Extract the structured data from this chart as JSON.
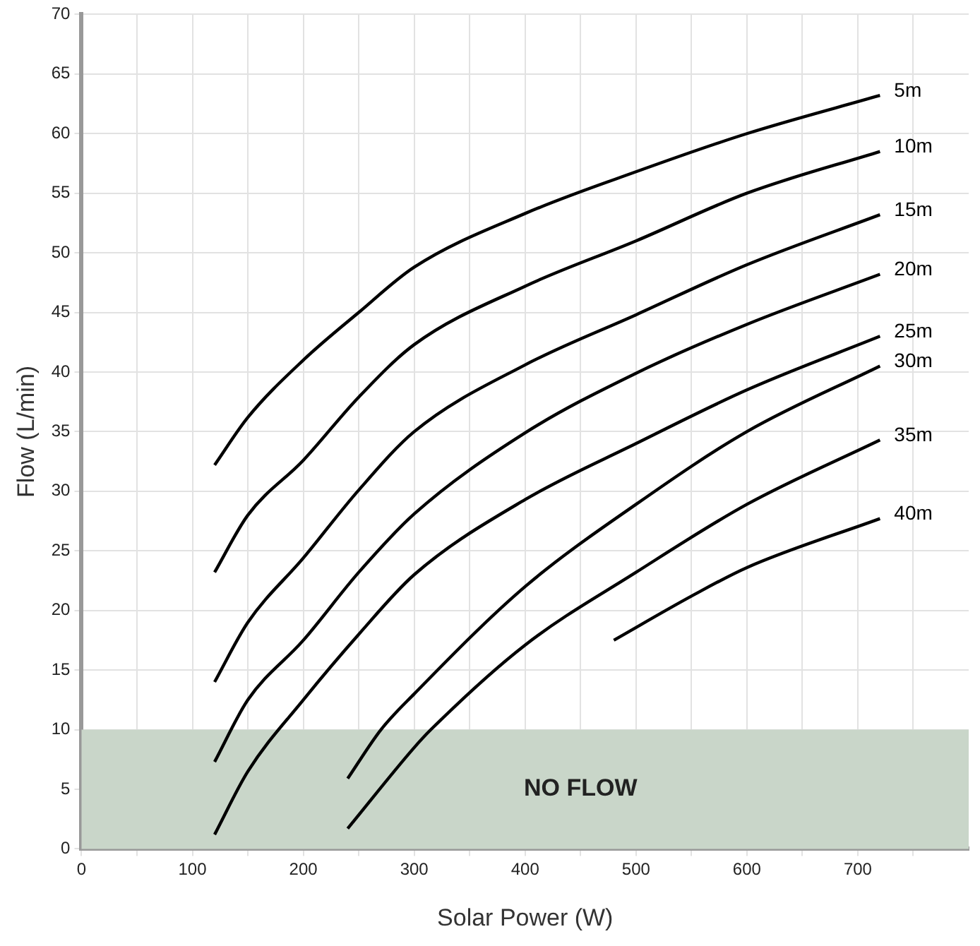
{
  "chart_data": {
    "type": "line",
    "xlabel": "Solar Power (W)",
    "ylabel": "Flow (L/min)",
    "xlim": [
      0,
      800
    ],
    "ylim": [
      0,
      70
    ],
    "xticks": [
      0,
      {
        "value": 50,
        "label": null
      },
      100,
      {
        "value": 150,
        "label": null
      },
      200,
      {
        "value": 250,
        "label": null
      },
      300,
      {
        "value": 350,
        "label": null
      },
      400,
      {
        "value": 450,
        "label": null
      },
      500,
      {
        "value": 550,
        "label": null
      },
      600,
      {
        "value": 650,
        "label": null
      },
      700,
      {
        "value": 750,
        "label": null
      }
    ],
    "yticks": [
      0,
      5,
      10,
      15,
      20,
      25,
      30,
      35,
      40,
      45,
      50,
      55,
      60,
      65,
      70
    ],
    "grid": true,
    "legend": false,
    "marker": "none",
    "line_style": "solid",
    "series": [
      {
        "name": "5m",
        "color": "#000000",
        "x": [
          120,
          150,
          200,
          250,
          300,
          400,
          500,
          600,
          720
        ],
        "values": [
          32.2,
          36.2,
          41,
          45,
          48.8,
          53.3,
          56.8,
          60,
          63.2
        ]
      },
      {
        "name": "10m",
        "color": "#000000",
        "x": [
          120,
          150,
          200,
          250,
          300,
          400,
          500,
          600,
          720
        ],
        "values": [
          23.2,
          28,
          32.6,
          37.9,
          42.3,
          47.2,
          51,
          55,
          58.5
        ]
      },
      {
        "name": "15m",
        "color": "#000000",
        "x": [
          120,
          150,
          200,
          250,
          300,
          400,
          500,
          600,
          720
        ],
        "values": [
          14,
          19,
          24.4,
          30.1,
          35,
          40.6,
          44.8,
          49,
          53.2
        ]
      },
      {
        "name": "20m",
        "color": "#000000",
        "x": [
          120,
          150,
          200,
          250,
          300,
          400,
          500,
          600,
          720
        ],
        "values": [
          7.3,
          12.5,
          17.5,
          23.2,
          28.1,
          34.9,
          39.9,
          44,
          48.2
        ]
      },
      {
        "name": "25m",
        "color": "#000000",
        "x": [
          120,
          150,
          200,
          250,
          300,
          400,
          500,
          600,
          720
        ],
        "values": [
          1.2,
          6.5,
          12.5,
          18,
          23,
          29.3,
          34,
          38.5,
          43
        ]
      },
      {
        "name": "30m",
        "color": "#000000",
        "x": [
          240,
          270,
          300,
          400,
          500,
          600,
          720
        ],
        "values": [
          5.9,
          10,
          13,
          22,
          28.9,
          35,
          40.5
        ]
      },
      {
        "name": "35m",
        "color": "#000000",
        "x": [
          240,
          300,
          315,
          400,
          500,
          600,
          720
        ],
        "values": [
          1.7,
          8.5,
          10,
          17.1,
          23.2,
          28.9,
          34.3
        ]
      },
      {
        "name": "40m",
        "color": "#000000",
        "x": [
          480,
          550,
          600,
          720
        ],
        "values": [
          17.5,
          21.2,
          23.6,
          27.7
        ]
      }
    ],
    "bands": [
      {
        "axis": "y",
        "from": 0,
        "to": 10,
        "label": "NO FLOW",
        "color": "#c9d6c9"
      }
    ]
  }
}
